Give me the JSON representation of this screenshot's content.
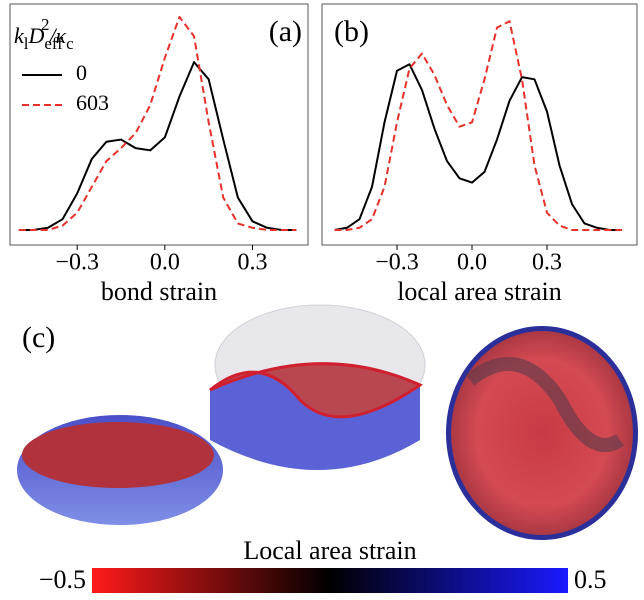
{
  "chart_data": [
    {
      "type": "line",
      "panel_label": "(a)",
      "xlabel": "bond strain",
      "xlim": [
        -0.53,
        0.49
      ],
      "ylim": [
        -0.07,
        1.05
      ],
      "xticks": [
        {
          "value": -0.3,
          "label": "−0.3"
        },
        {
          "value": 0,
          "label": "0.0"
        },
        {
          "value": 0.3,
          "label": "0.3"
        }
      ],
      "legend_title": [
        "k",
        "l",
        "D",
        "eff",
        "2",
        "/κ",
        "c"
      ],
      "x": [
        -0.5,
        -0.45,
        -0.4,
        -0.35,
        -0.3,
        -0.25,
        -0.2,
        -0.15,
        -0.1,
        -0.05,
        0,
        0.05,
        0.1,
        0.15,
        0.2,
        0.25,
        0.3,
        0.35,
        0.4,
        0.45
      ],
      "series": [
        {
          "name": "0",
          "color": "#000000",
          "dash": false,
          "values": [
            0,
            0,
            0.01,
            0.05,
            0.17,
            0.33,
            0.41,
            0.42,
            0.38,
            0.37,
            0.43,
            0.62,
            0.78,
            0.7,
            0.42,
            0.15,
            0.04,
            0.01,
            0,
            0
          ]
        },
        {
          "name": "603",
          "color": "#e8302a",
          "dash": true,
          "values": [
            0,
            0,
            0,
            0.02,
            0.08,
            0.2,
            0.32,
            0.38,
            0.45,
            0.58,
            0.8,
            0.99,
            0.9,
            0.5,
            0.15,
            0.03,
            0.01,
            0,
            0,
            0
          ]
        }
      ]
    },
    {
      "type": "line",
      "panel_label": "(b)",
      "xlabel": "local area strain",
      "xlim": [
        -0.6,
        0.66
      ],
      "ylim": [
        -0.07,
        1.05
      ],
      "xticks": [
        {
          "value": -0.3,
          "label": "−0.3"
        },
        {
          "value": 0,
          "label": "0.0"
        },
        {
          "value": 0.3,
          "label": "0.3"
        }
      ],
      "x": [
        -0.55,
        -0.5,
        -0.45,
        -0.4,
        -0.35,
        -0.3,
        -0.25,
        -0.2,
        -0.15,
        -0.1,
        -0.05,
        0,
        0.05,
        0.1,
        0.15,
        0.2,
        0.25,
        0.3,
        0.35,
        0.4,
        0.45,
        0.5,
        0.55,
        0.6
      ],
      "series": [
        {
          "name": "0",
          "color": "#000000",
          "dash": false,
          "values": [
            0,
            0.01,
            0.05,
            0.2,
            0.5,
            0.74,
            0.77,
            0.65,
            0.47,
            0.32,
            0.24,
            0.22,
            0.27,
            0.42,
            0.6,
            0.71,
            0.7,
            0.55,
            0.3,
            0.12,
            0.03,
            0.01,
            0,
            0
          ]
        },
        {
          "name": "603",
          "color": "#e8302a",
          "dash": true,
          "values": [
            0,
            0,
            0.01,
            0.05,
            0.2,
            0.5,
            0.75,
            0.82,
            0.72,
            0.58,
            0.48,
            0.5,
            0.7,
            0.94,
            0.97,
            0.7,
            0.3,
            0.08,
            0.02,
            0,
            0,
            0,
            0,
            0
          ]
        }
      ]
    }
  ],
  "panel_c": {
    "panel_label": "(c)",
    "colorbar": {
      "label": "Local area strain",
      "lim": [
        -0.5,
        0.5
      ],
      "ticks": [
        {
          "value": -0.5,
          "label": "−0.5"
        },
        0.5
      ],
      "colors": [
        "#ff1a1a",
        "#000000",
        "#1a1aff"
      ]
    }
  }
}
